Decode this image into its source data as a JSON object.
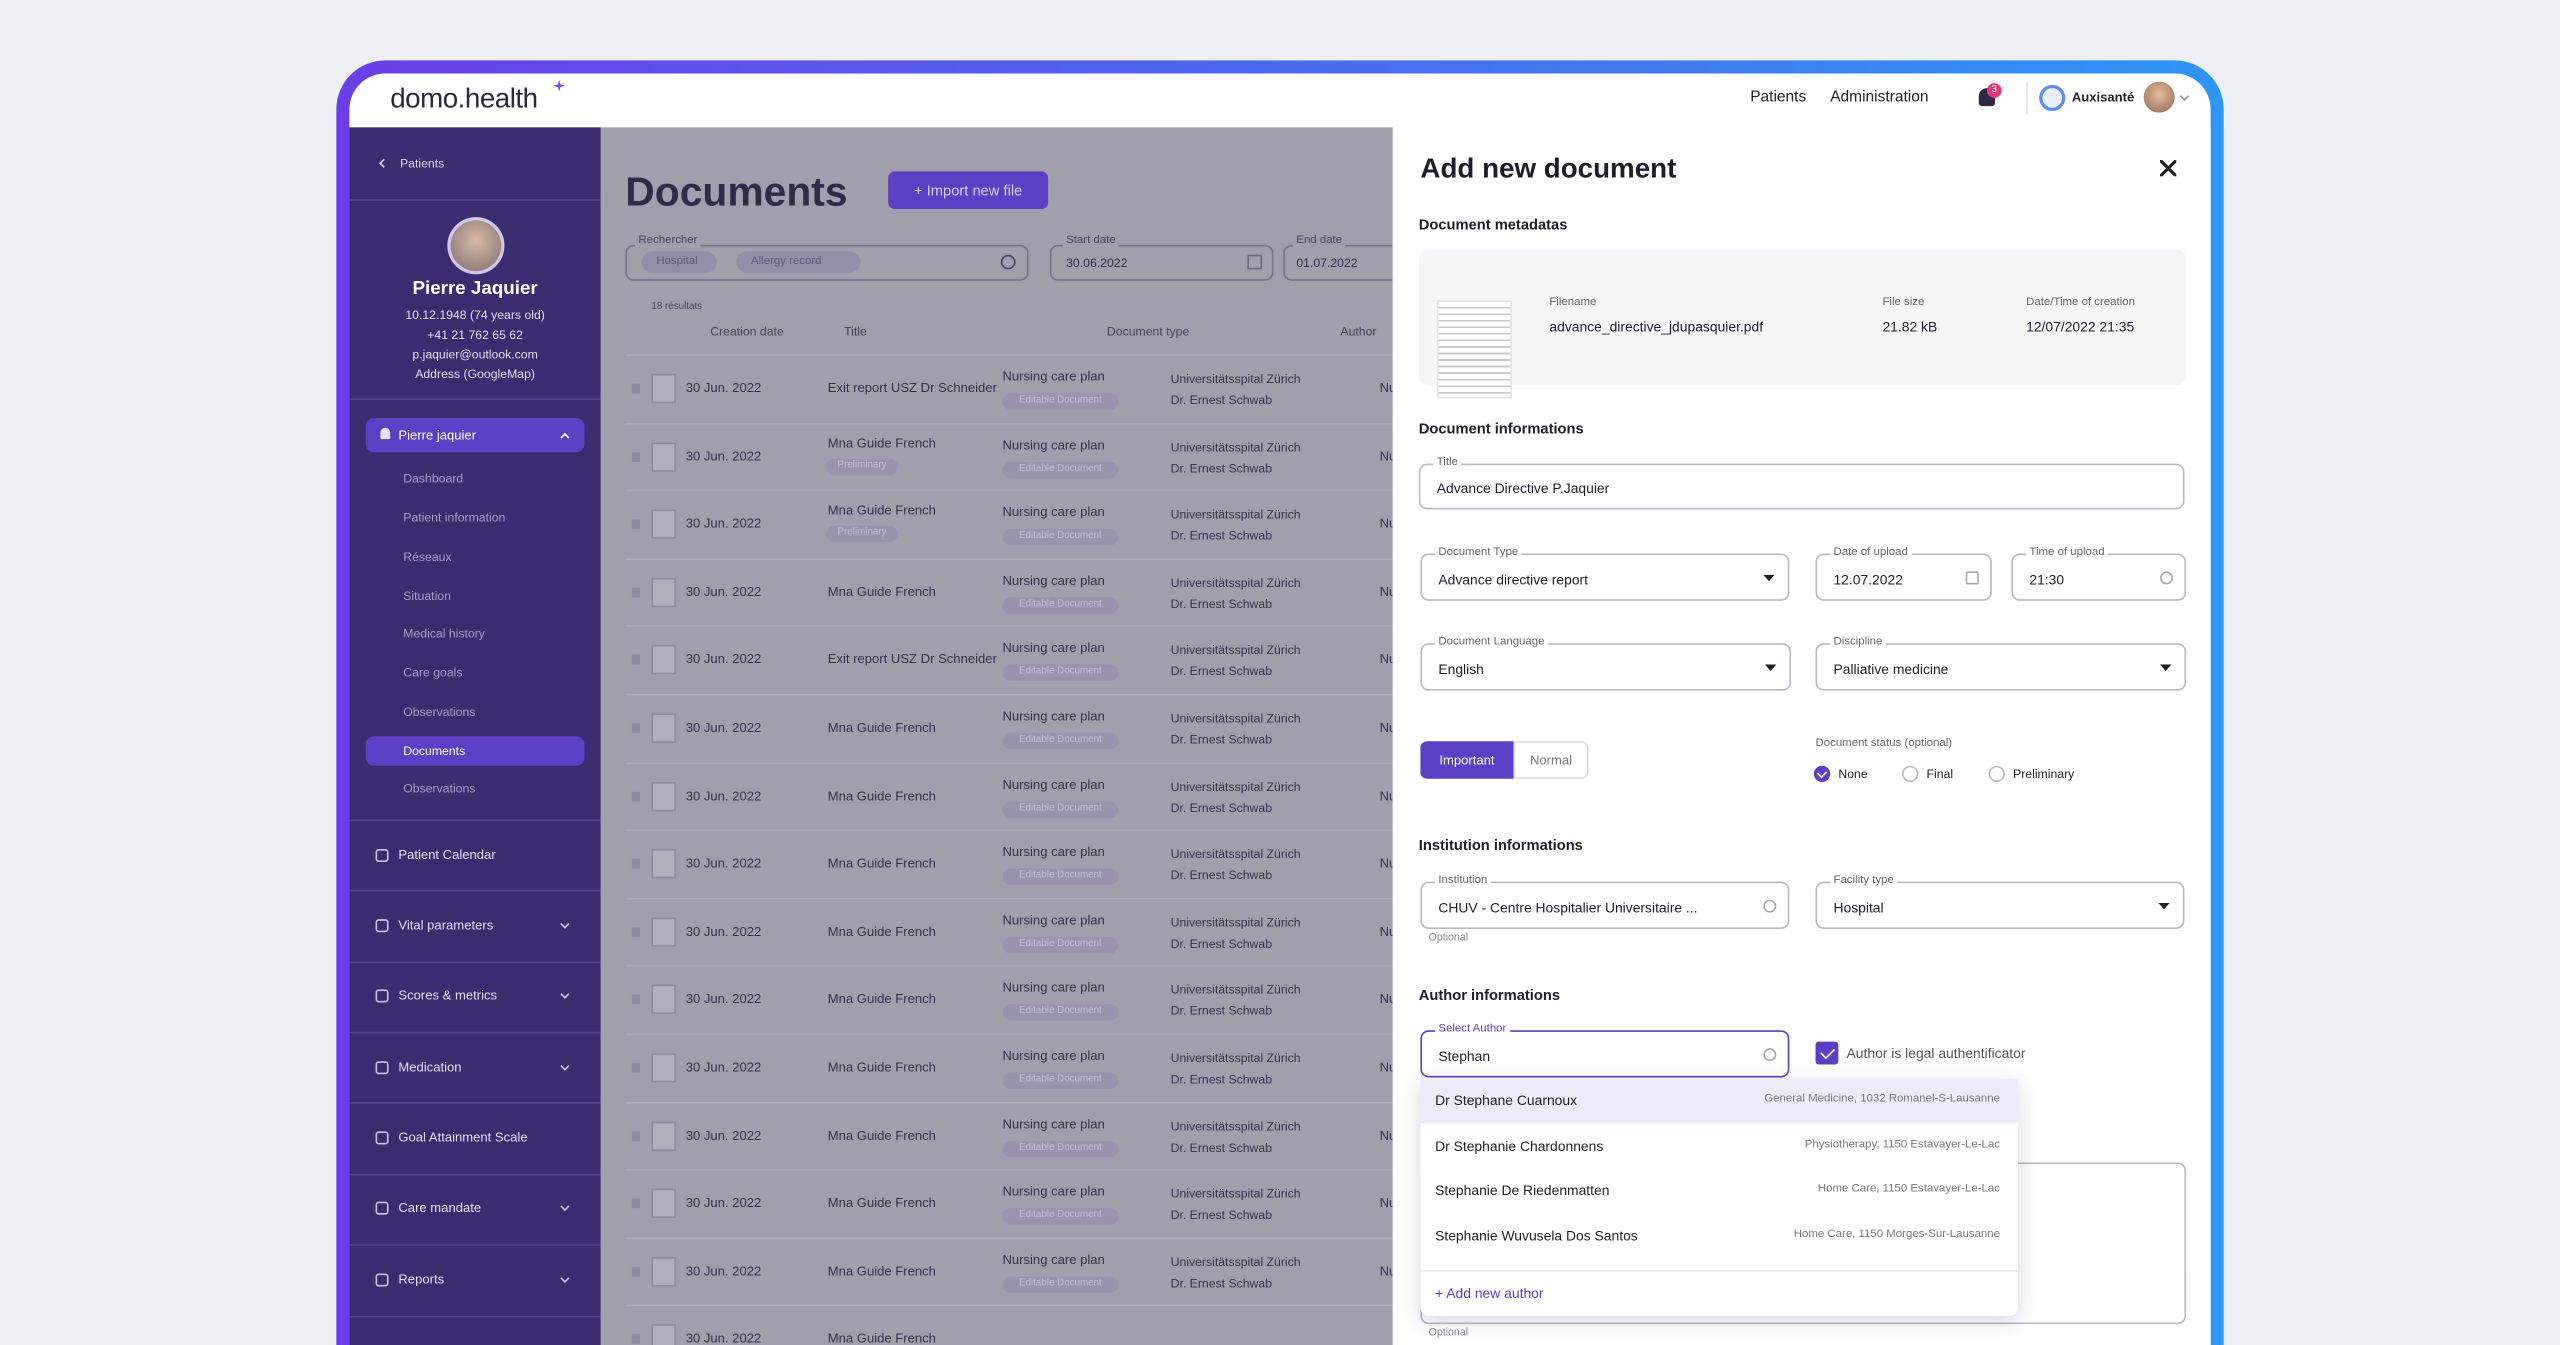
{
  "header": {
    "logo": "domo.health",
    "nav": [
      "Patients",
      "Administration"
    ],
    "notifications": "3",
    "organization": "Auxisanté"
  },
  "sidebar": {
    "back": "Patients",
    "patient": {
      "name": "Pierre Jaquier",
      "details": [
        "10.12.1948 (74 years old)",
        "+41 21 762 65 62",
        "p.jaquier@outlook.com",
        "Address (GoogleMap)"
      ]
    },
    "section": "Pierre jaquier",
    "subitems": [
      "Dashboard",
      "Patient information",
      "Réseaux",
      "Situation",
      "Medical history",
      "Care goals",
      "Observations",
      "Documents",
      "Observations"
    ],
    "menu": [
      "Patient Calendar",
      "Vital parameters",
      "Scores & metrics",
      "Medication",
      "Goal Attainment Scale",
      "Care mandate",
      "Reports"
    ]
  },
  "documents": {
    "title": "Documents",
    "import_button": "+ Import new file",
    "search": {
      "label": "Rechercher",
      "chips": [
        "Hospital",
        "Allergy record"
      ]
    },
    "start_date": {
      "label": "Start date",
      "value": "30.06.2022"
    },
    "end_date": {
      "label": "End date",
      "value": "01.07.2022"
    },
    "results": "18 résultats",
    "columns": [
      "Creation date",
      "Title",
      "Document type",
      "Author"
    ],
    "rows": [
      {
        "date": "30 Jun. 2022",
        "title": "Exit report USZ Dr Schneider",
        "type": "Nursing care plan",
        "status": "Editable Document",
        "institution": "Universitätsspital Zürich",
        "author": "Dr. Ernest Schwab",
        "author_col": "Nu"
      },
      {
        "date": "30 Jun. 2022",
        "title": "Mna Guide French",
        "tag": "Preliminary",
        "type": "Nursing care plan",
        "status": "Editable Document",
        "institution": "Universitätsspital Zürich",
        "author": "Dr. Ernest Schwab",
        "author_col": "Nu"
      },
      {
        "date": "30 Jun. 2022",
        "title": "Mna Guide French",
        "tag": "Preliminary",
        "type": "Nursing care plan",
        "status": "Editable Document",
        "institution": "Universitätsspital Zürich",
        "author": "Dr. Ernest Schwab",
        "author_col": "Nu"
      },
      {
        "date": "30 Jun. 2022",
        "title": "Mna Guide French",
        "type": "Nursing care plan",
        "status": "Editable Document",
        "institution": "Universitätsspital Zürich",
        "author": "Dr. Ernest Schwab",
        "author_col": "Nu"
      },
      {
        "date": "30 Jun. 2022",
        "title": "Exit report USZ Dr Schneider",
        "type": "Nursing care plan",
        "status": "Editable Document",
        "institution": "Universitätsspital Zürich",
        "author": "Dr. Ernest Schwab",
        "author_col": "Nu"
      },
      {
        "date": "30 Jun. 2022",
        "title": "Mna Guide French",
        "type": "Nursing care plan",
        "status": "Editable Document",
        "institution": "Universitätsspital Zürich",
        "author": "Dr. Ernest Schwab",
        "author_col": "Nu"
      },
      {
        "date": "30 Jun. 2022",
        "title": "Mna Guide French",
        "type": "Nursing care plan",
        "status": "Editable Document",
        "institution": "Universitätsspital Zürich",
        "author": "Dr. Ernest Schwab",
        "author_col": "Nu"
      },
      {
        "date": "30 Jun. 2022",
        "title": "Mna Guide French",
        "type": "Nursing care plan",
        "status": "Editable Document",
        "institution": "Universitätsspital Zürich",
        "author": "Dr. Ernest Schwab",
        "author_col": "Nu"
      },
      {
        "date": "30 Jun. 2022",
        "title": "Mna Guide French",
        "type": "Nursing care plan",
        "status": "Editable Document",
        "institution": "Universitätsspital Zürich",
        "author": "Dr. Ernest Schwab",
        "author_col": "Nu"
      },
      {
        "date": "30 Jun. 2022",
        "title": "Mna Guide French",
        "type": "Nursing care plan",
        "status": "Editable Document",
        "institution": "Universitätsspital Zürich",
        "author": "Dr. Ernest Schwab",
        "author_col": "Nu"
      },
      {
        "date": "30 Jun. 2022",
        "title": "Mna Guide French",
        "type": "Nursing care plan",
        "status": "Editable Document",
        "institution": "Universitätsspital Zürich",
        "author": "Dr. Ernest Schwab",
        "author_col": "Nu"
      },
      {
        "date": "30 Jun. 2022",
        "title": "Mna Guide French",
        "type": "Nursing care plan",
        "status": "Editable Document",
        "institution": "Universitätsspital Zürich",
        "author": "Dr. Ernest Schwab",
        "author_col": "Nu"
      },
      {
        "date": "30 Jun. 2022",
        "title": "Mna Guide French",
        "type": "Nursing care plan",
        "status": "Editable Document",
        "institution": "Universitätsspital Zürich",
        "author": "Dr. Ernest Schwab",
        "author_col": "Nu"
      },
      {
        "date": "30 Jun. 2022",
        "title": "Mna Guide French",
        "type": "Nursing care plan",
        "status": "Editable Document",
        "institution": "Universitätsspital Zürich",
        "author": "Dr. Ernest Schwab",
        "author_col": "Nu"
      },
      {
        "date": "30 Jun. 2022",
        "title": "Mna Guide French"
      }
    ]
  },
  "panel": {
    "title": "Add new document",
    "metadata": {
      "heading": "Document metadatas",
      "filename_label": "Filename",
      "filename": "advance_directive_jdupasquier.pdf",
      "size_label": "File size",
      "size": "21.82 kB",
      "created_label": "Date/Time of creation",
      "created": "12/07/2022 21:35"
    },
    "info": {
      "heading": "Document informations",
      "title": {
        "label": "Title",
        "value": "Advance Directive P.Jaquier"
      },
      "type": {
        "label": "Document Type",
        "value": "Advance directive report"
      },
      "upload_date": {
        "label": "Date of upload",
        "value": "12.07.2022"
      },
      "upload_time": {
        "label": "Time of upload",
        "value": "21:30"
      },
      "language": {
        "label": "Document Language",
        "value": "English"
      },
      "discipline": {
        "label": "Discipline",
        "value": "Palliative medicine"
      },
      "priority": [
        "Important",
        "Normal"
      ],
      "status_label": "Document status (optional)",
      "status_options": [
        "None",
        "Final",
        "Preliminary"
      ]
    },
    "institution": {
      "heading": "Institution informations",
      "institution": {
        "label": "Institution",
        "value": "CHUV - Centre Hospitalier Universitaire ..."
      },
      "optional": "Optional",
      "facility": {
        "label": "Facility type",
        "value": "Hospital"
      }
    },
    "author": {
      "heading": "Author informations",
      "select": {
        "label": "Select Author",
        "value": "Stephan"
      },
      "legal": "Author is legal authentificator",
      "options": [
        {
          "name": "Dr Stephane Cuarnoux",
          "detail": "General Medicine, 1032 Romanel-S-Lausanne"
        },
        {
          "name": "Dr Stephanie Chardonnens",
          "detail": "Physiotherapy, 1150 Estavayer-Le-Lac"
        },
        {
          "name": "Stephanie De Riedenmatten",
          "detail": "Home Care, 1150 Estavayer-Le-Lac"
        },
        {
          "name": "Stephanie Wuvusela Dos Santos",
          "detail": "Home Care, 1150 Morges-Sur-Lausanne"
        }
      ],
      "add": "+ Add new author",
      "optional": "Optional"
    }
  }
}
